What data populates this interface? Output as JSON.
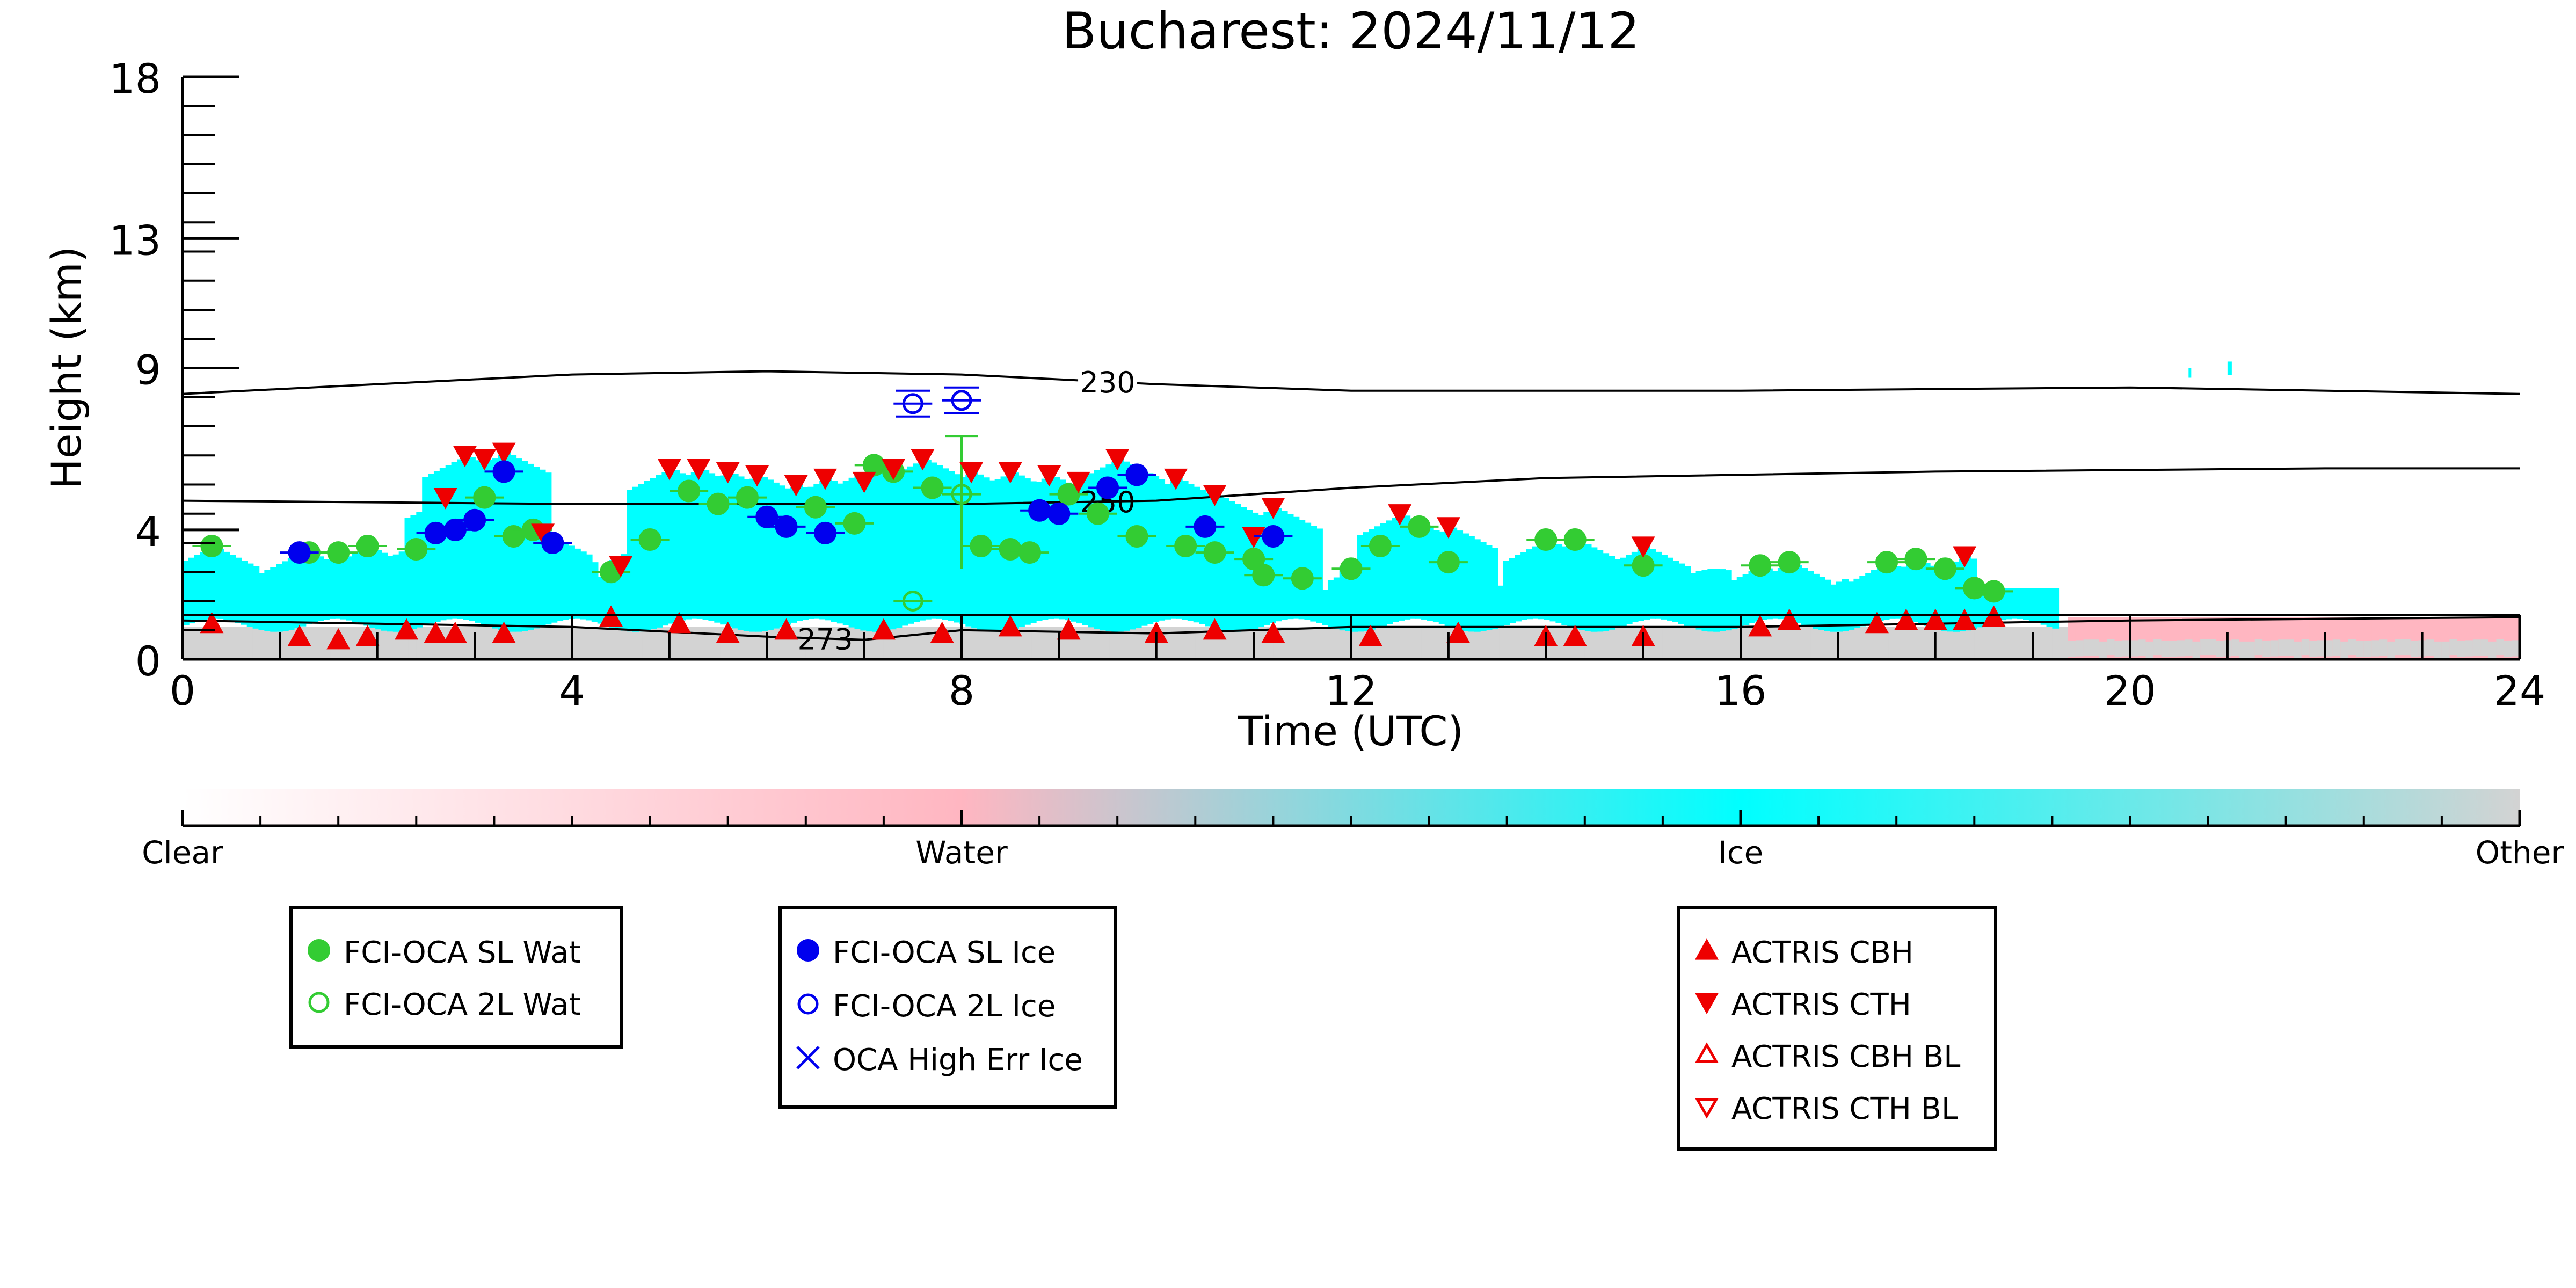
{
  "chart_data": {
    "type": "scatter",
    "title": "Bucharest: 2024/11/12",
    "xlabel": "Time (UTC)",
    "ylabel": "Height (km)",
    "xlim": [
      0,
      24
    ],
    "ylim": [
      0,
      18
    ],
    "x_ticks": [
      "0",
      "4",
      "8",
      "12",
      "16",
      "20",
      "24"
    ],
    "y_ticks": [
      {
        "value": 0,
        "label": "0"
      },
      {
        "value": 4,
        "label": "4"
      },
      {
        "value": 9,
        "label": "9"
      },
      {
        "value": 13,
        "label": "13"
      },
      {
        "value": 18,
        "label": "18"
      }
    ],
    "colorbar": {
      "labels": [
        "Clear",
        "Water",
        "Ice",
        "Other"
      ],
      "colors": [
        "#ffffff",
        "#ffb6c1",
        "#00ffff",
        "#d3d3d3"
      ]
    },
    "contours": [
      {
        "label": "230",
        "label_x": 9.5,
        "points": [
          [
            0,
            8.2
          ],
          [
            2,
            8.5
          ],
          [
            4,
            8.8
          ],
          [
            6,
            8.9
          ],
          [
            8,
            8.8
          ],
          [
            10,
            8.5
          ],
          [
            12,
            8.3
          ],
          [
            16,
            8.3
          ],
          [
            20,
            8.4
          ],
          [
            24,
            8.2
          ]
        ]
      },
      {
        "label": "250",
        "label_x": 9.5,
        "points": [
          [
            0,
            4.9
          ],
          [
            4,
            4.8
          ],
          [
            8,
            4.8
          ],
          [
            10,
            4.9
          ],
          [
            12,
            5.3
          ],
          [
            14,
            5.6
          ],
          [
            18,
            5.8
          ],
          [
            22,
            5.9
          ],
          [
            24,
            5.9
          ]
        ]
      },
      {
        "label": "273",
        "label_x": 6.6,
        "points": [
          [
            0,
            1.2
          ],
          [
            2,
            1.1
          ],
          [
            4,
            1.0
          ],
          [
            6,
            0.7
          ],
          [
            7,
            0.6
          ],
          [
            8,
            0.9
          ],
          [
            10,
            0.8
          ],
          [
            12,
            1.0
          ],
          [
            14,
            1.0
          ],
          [
            16,
            1.0
          ],
          [
            18,
            1.1
          ],
          [
            20,
            1.2
          ],
          [
            24,
            1.3
          ]
        ]
      }
    ],
    "series": [
      {
        "name": "FCI-OCA SL Wat",
        "marker": "filled-circle",
        "color": "#33cc33",
        "points": [
          [
            0.3,
            3.5
          ],
          [
            1.3,
            3.3
          ],
          [
            1.6,
            3.3
          ],
          [
            1.9,
            3.5
          ],
          [
            2.4,
            3.4
          ],
          [
            3.1,
            5.0
          ],
          [
            3.4,
            3.8
          ],
          [
            3.6,
            4.0
          ],
          [
            4.4,
            2.7
          ],
          [
            4.8,
            3.7
          ],
          [
            5.2,
            5.2
          ],
          [
            5.5,
            4.8
          ],
          [
            5.8,
            5.0
          ],
          [
            6.5,
            4.7
          ],
          [
            6.9,
            4.2
          ],
          [
            7.1,
            6.0
          ],
          [
            7.3,
            5.8
          ],
          [
            7.7,
            5.3
          ],
          [
            8.2,
            3.5
          ],
          [
            8.5,
            3.4
          ],
          [
            8.7,
            3.3
          ],
          [
            9.1,
            5.1
          ],
          [
            9.4,
            4.5
          ],
          [
            9.8,
            3.8
          ],
          [
            10.3,
            3.5
          ],
          [
            10.6,
            3.3
          ],
          [
            11.0,
            3.1
          ],
          [
            11.1,
            2.6
          ],
          [
            11.5,
            2.5
          ],
          [
            12.0,
            2.8
          ],
          [
            12.3,
            3.5
          ],
          [
            12.7,
            4.1
          ],
          [
            13.0,
            3.0
          ],
          [
            14.0,
            3.7
          ],
          [
            14.3,
            3.7
          ],
          [
            15.0,
            2.9
          ],
          [
            16.2,
            2.9
          ],
          [
            16.5,
            3.0
          ],
          [
            17.5,
            3.0
          ],
          [
            17.8,
            3.1
          ],
          [
            18.1,
            2.8
          ],
          [
            18.4,
            2.2
          ],
          [
            18.6,
            2.1
          ]
        ]
      },
      {
        "name": "FCI-OCA 2L Wat",
        "marker": "open-circle",
        "color": "#33cc33",
        "points": [
          [
            7.5,
            1.8
          ],
          [
            8.0,
            5.1
          ]
        ]
      },
      {
        "name": "FCI-OCA SL Ice",
        "marker": "filled-circle",
        "color": "#0000ee",
        "points": [
          [
            1.2,
            3.3
          ],
          [
            2.6,
            3.9
          ],
          [
            2.8,
            4.0
          ],
          [
            3.0,
            4.3
          ],
          [
            3.3,
            5.8
          ],
          [
            3.8,
            3.6
          ],
          [
            6.0,
            4.4
          ],
          [
            6.2,
            4.1
          ],
          [
            6.6,
            3.9
          ],
          [
            8.8,
            4.6
          ],
          [
            9.0,
            4.5
          ],
          [
            9.5,
            5.3
          ],
          [
            9.8,
            5.7
          ],
          [
            10.5,
            4.1
          ],
          [
            11.2,
            3.8
          ]
        ]
      },
      {
        "name": "FCI-OCA 2L Ice",
        "marker": "open-circle",
        "color": "#0000ee",
        "points": [
          [
            7.5,
            7.9
          ],
          [
            8.0,
            8.0
          ]
        ]
      },
      {
        "name": "OCA High Err Ice",
        "marker": "x",
        "color": "#0000ee",
        "points": []
      },
      {
        "name": "ACTRIS CBH",
        "marker": "triangle-up",
        "color": "#ee0000",
        "points": [
          [
            0.3,
            1.1
          ],
          [
            1.2,
            0.7
          ],
          [
            1.6,
            0.6
          ],
          [
            1.9,
            0.7
          ],
          [
            2.3,
            0.9
          ],
          [
            2.6,
            0.8
          ],
          [
            2.8,
            0.8
          ],
          [
            3.3,
            0.8
          ],
          [
            4.4,
            1.3
          ],
          [
            5.1,
            1.1
          ],
          [
            5.6,
            0.8
          ],
          [
            6.2,
            0.9
          ],
          [
            7.2,
            0.9
          ],
          [
            7.8,
            0.8
          ],
          [
            8.5,
            1.0
          ],
          [
            9.1,
            0.9
          ],
          [
            10.0,
            0.8
          ],
          [
            10.6,
            0.9
          ],
          [
            11.2,
            0.8
          ],
          [
            12.2,
            0.7
          ],
          [
            13.1,
            0.8
          ],
          [
            14.0,
            0.7
          ],
          [
            14.3,
            0.7
          ],
          [
            15.0,
            0.7
          ],
          [
            16.2,
            1.0
          ],
          [
            16.5,
            1.2
          ],
          [
            17.4,
            1.1
          ],
          [
            17.7,
            1.2
          ],
          [
            18.0,
            1.2
          ],
          [
            18.3,
            1.2
          ],
          [
            18.6,
            1.3
          ]
        ]
      },
      {
        "name": "ACTRIS CTH",
        "marker": "triangle-down",
        "color": "#ee0000",
        "points": [
          [
            2.7,
            5.0
          ],
          [
            2.9,
            6.3
          ],
          [
            3.1,
            6.2
          ],
          [
            3.3,
            6.4
          ],
          [
            3.7,
            3.9
          ],
          [
            4.5,
            2.9
          ],
          [
            5.0,
            5.9
          ],
          [
            5.3,
            5.9
          ],
          [
            5.6,
            5.8
          ],
          [
            5.9,
            5.7
          ],
          [
            6.3,
            5.4
          ],
          [
            6.6,
            5.6
          ],
          [
            7.0,
            5.5
          ],
          [
            7.3,
            5.9
          ],
          [
            7.6,
            6.2
          ],
          [
            8.1,
            5.8
          ],
          [
            8.5,
            5.8
          ],
          [
            8.9,
            5.7
          ],
          [
            9.2,
            5.5
          ],
          [
            9.6,
            6.2
          ],
          [
            10.2,
            5.6
          ],
          [
            10.6,
            5.1
          ],
          [
            11.0,
            3.8
          ],
          [
            11.2,
            4.7
          ],
          [
            12.5,
            4.5
          ],
          [
            13.0,
            4.1
          ],
          [
            15.0,
            3.5
          ],
          [
            18.3,
            3.2
          ]
        ]
      },
      {
        "name": "ACTRIS CBH BL",
        "marker": "open-triangle-up",
        "color": "#ee0000",
        "points": []
      },
      {
        "name": "ACTRIS CTH BL",
        "marker": "open-triangle-down",
        "color": "#ee0000",
        "points": []
      }
    ],
    "legend": [
      {
        "placement": "bottom-left",
        "entries": [
          "FCI-OCA SL Wat",
          "FCI-OCA 2L Wat"
        ]
      },
      {
        "placement": "bottom-center-left",
        "entries": [
          "FCI-OCA SL Ice",
          "FCI-OCA 2L Ice",
          "OCA High Err Ice"
        ]
      },
      {
        "placement": "bottom-right",
        "entries": [
          "ACTRIS CBH",
          "ACTRIS CTH",
          "ACTRIS CBH BL",
          "ACTRIS CTH BL"
        ]
      }
    ],
    "grid": false
  }
}
